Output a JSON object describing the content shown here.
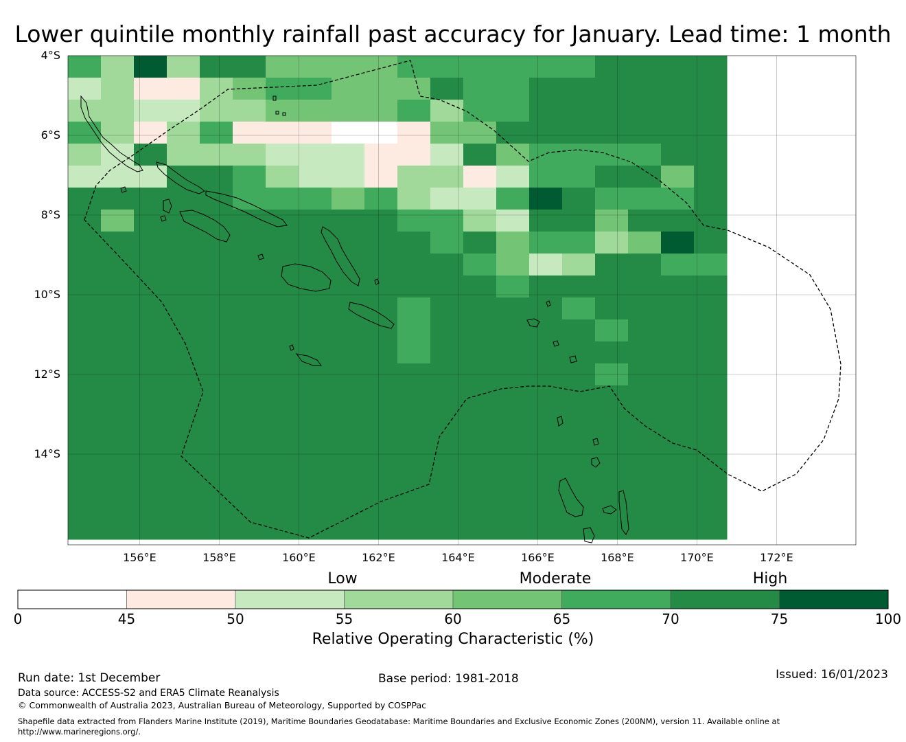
{
  "title": "Lower quintile monthly rainfall past accuracy for January. Lead time: 1 month",
  "map": {
    "lat_labels": [
      "4°S",
      "6°S",
      "8°S",
      "10°S",
      "12°S",
      "14°S"
    ],
    "lon_labels": [
      "156°E",
      "158°E",
      "160°E",
      "162°E",
      "164°E",
      "166°E",
      "168°E",
      "170°E",
      "172°E"
    ],
    "grid_rows": [
      "53736644445555556666",
      "23113455444655666666",
      "33223344445355666666",
      "53135111001446666666",
      "32633322211264555566",
      "22266532213312556646",
      "66666555453225765556",
      "64666666665532664666",
      "66666666666564553476",
      "66666666666654236655",
      "66666666666665666666",
      "66666666665666656666",
      "66666666665666665666",
      "66666666665666666666",
      "66666666666666665666",
      "66666666666666666666",
      "66666666666666666666",
      "66666666666666666666",
      "66666666666666666666",
      "66666666666666666666",
      "66666666666666666666",
      "66666666666666666666"
    ]
  },
  "colorbar": {
    "categories": [
      "Low",
      "Moderate",
      "High"
    ],
    "ticks": [
      "0",
      "45",
      "50",
      "55",
      "60",
      "65",
      "70",
      "75",
      "100"
    ],
    "colors": [
      "#ffffff",
      "#fdeae1",
      "#c7e9c0",
      "#a1d99b",
      "#74c476",
      "#41ab5d",
      "#238b45",
      "#005a32"
    ],
    "label": "Relative Operating Characteristic (%)"
  },
  "footer": {
    "run_date": "Run date: 1st December",
    "base_period": "Base period: 1981-2018",
    "issued": "Issued: 16/01/2023",
    "data_source": "Data source: ACCESS-S2 and ERA5 Climate Reanalysis",
    "copyright": "© Commonwealth of Australia 2023, Australian Bureau of Meteorology, Supported by COSPPac",
    "shapefile_line1": "Shapefile data extracted from Flanders Marine Institute (2019), Maritime Boundaries Geodatabase: Maritime Boundaries and Exclusive Economic Zones (200NM), version 11. Available online at",
    "shapefile_line2": "http://www.marineregions.org/."
  }
}
